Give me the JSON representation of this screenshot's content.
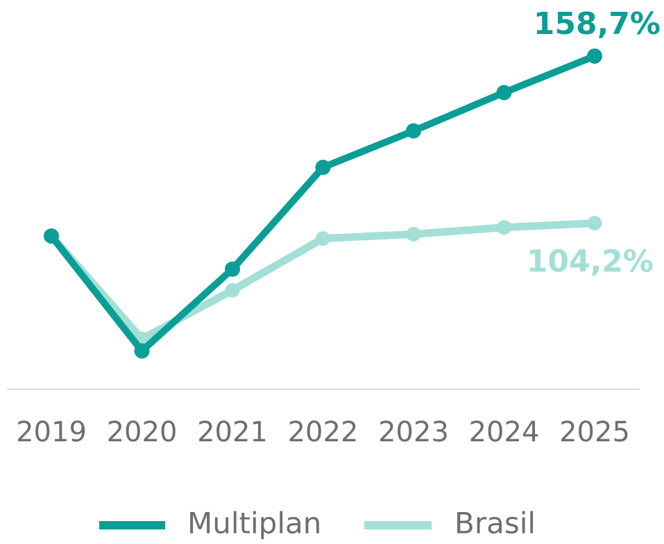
{
  "chart_data": {
    "type": "line",
    "categories": [
      "2019",
      "2020",
      "2021",
      "2022",
      "2023",
      "2024",
      "2025"
    ],
    "series": [
      {
        "name": "Multiplan",
        "color": "#0a9e96",
        "values": [
          100,
          62.5,
          89.2,
          122.4,
          134.3,
          146.8,
          158.7
        ],
        "value_labels": [
          null,
          null,
          null,
          null,
          null,
          null,
          "158,7%"
        ]
      },
      {
        "name": "Brasil",
        "color": "#a3dfd6",
        "values": [
          100,
          66.4,
          82.3,
          99.2,
          100.6,
          102.8,
          104.2
        ],
        "value_labels": [
          null,
          null,
          null,
          null,
          null,
          null,
          "104,2%"
        ]
      }
    ],
    "ylim": [
      50,
      177
    ]
  }
}
